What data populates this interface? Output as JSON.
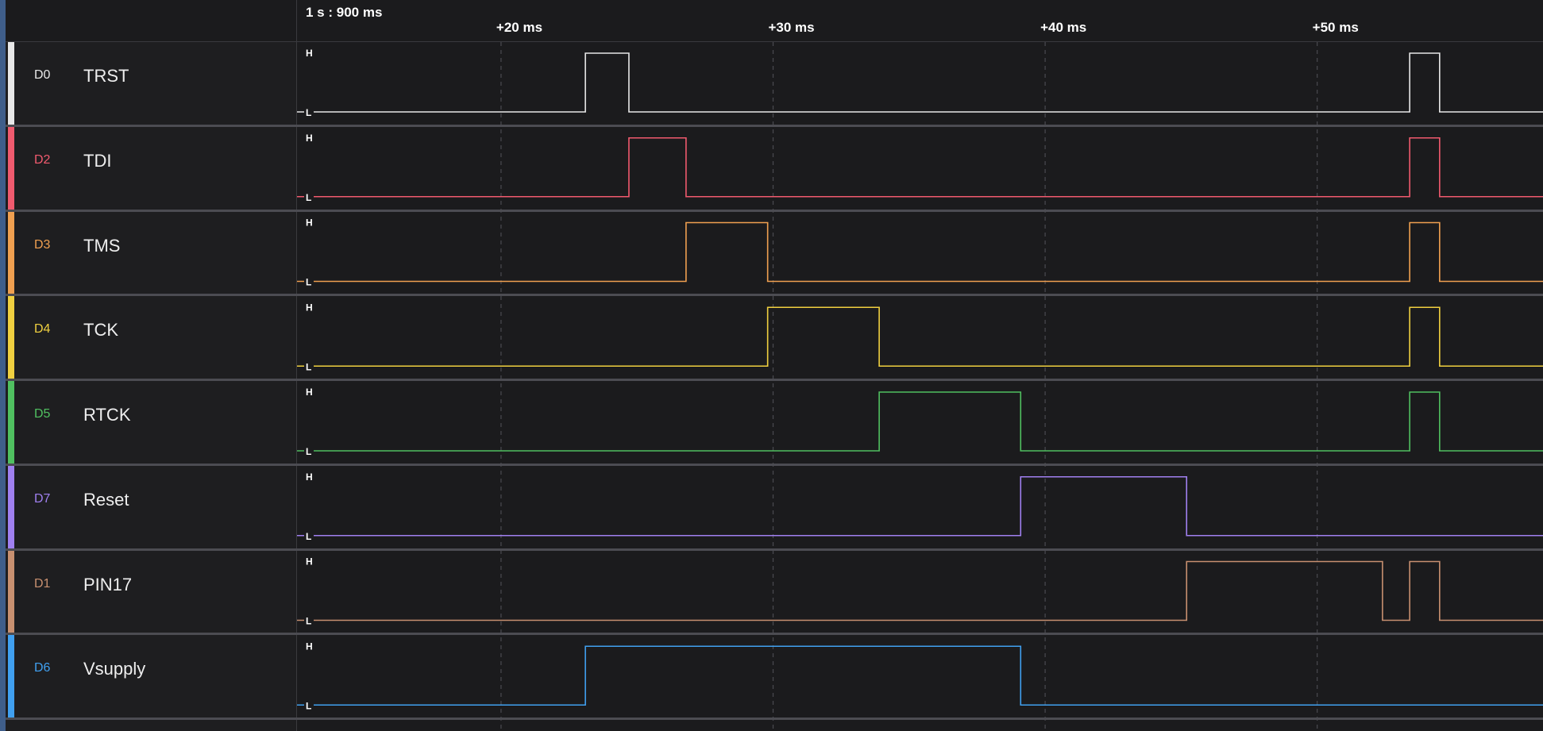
{
  "timeline": {
    "title": "1 s : 900 ms",
    "ticks": [
      "+20 ms",
      "+30 ms",
      "+40 ms",
      "+50 ms"
    ],
    "tick_values_ms": [
      20,
      30,
      40,
      50
    ]
  },
  "level_labels": {
    "high": "H",
    "low": "L"
  },
  "channels": [
    {
      "id": "D0",
      "name": "TRST",
      "color": "#e8e8e8",
      "edges": [
        [
          23.1,
          1
        ],
        [
          24.7,
          0
        ],
        [
          53.4,
          1
        ],
        [
          54.5,
          0
        ]
      ]
    },
    {
      "id": "D2",
      "name": "TDI",
      "color": "#f05a6e",
      "edges": [
        [
          24.7,
          1
        ],
        [
          26.8,
          0
        ],
        [
          53.4,
          1
        ],
        [
          54.5,
          0
        ]
      ]
    },
    {
      "id": "D3",
      "name": "TMS",
      "color": "#f0a050",
      "edges": [
        [
          26.8,
          1
        ],
        [
          29.8,
          0
        ],
        [
          53.4,
          1
        ],
        [
          54.5,
          0
        ]
      ]
    },
    {
      "id": "D4",
      "name": "TCK",
      "color": "#f0d040",
      "edges": [
        [
          29.8,
          1
        ],
        [
          33.9,
          0
        ],
        [
          53.4,
          1
        ],
        [
          54.5,
          0
        ]
      ]
    },
    {
      "id": "D5",
      "name": "RTCK",
      "color": "#50c060",
      "edges": [
        [
          33.9,
          1
        ],
        [
          39.1,
          0
        ],
        [
          53.4,
          1
        ],
        [
          54.5,
          0
        ]
      ]
    },
    {
      "id": "D7",
      "name": "Reset",
      "color": "#a080f0",
      "edges": [
        [
          39.1,
          1
        ],
        [
          45.2,
          0
        ]
      ]
    },
    {
      "id": "D1",
      "name": "PIN17",
      "color": "#c89070",
      "edges": [
        [
          45.2,
          1
        ],
        [
          52.4,
          0
        ],
        [
          53.4,
          1
        ],
        [
          54.5,
          0
        ]
      ]
    },
    {
      "id": "D6",
      "name": "Vsupply",
      "color": "#40a0f0",
      "edges": [
        [
          23.1,
          1
        ],
        [
          39.1,
          0
        ]
      ]
    }
  ],
  "view": {
    "start_ms": 12.5,
    "end_ms": 58.3
  }
}
